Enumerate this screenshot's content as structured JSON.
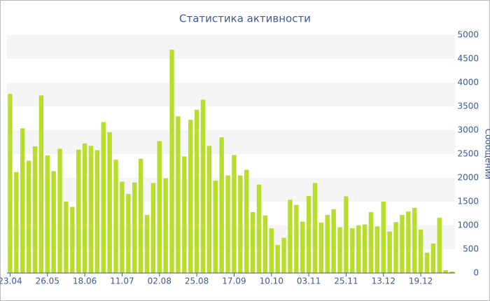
{
  "chart_data": {
    "type": "bar",
    "title": "Статистика активности",
    "y_label": "Сообщений",
    "categories": [
      "23.04",
      null,
      null,
      null,
      null,
      null,
      "26.05",
      null,
      null,
      null,
      null,
      null,
      "18.06",
      null,
      null,
      null,
      null,
      null,
      "11.07",
      null,
      null,
      null,
      null,
      null,
      "02.08",
      null,
      null,
      null,
      null,
      null,
      "25.08",
      null,
      null,
      null,
      null,
      null,
      "17.09",
      null,
      null,
      null,
      null,
      null,
      "10.10",
      null,
      null,
      null,
      null,
      null,
      "03.11",
      null,
      null,
      null,
      null,
      null,
      "25.11",
      null,
      null,
      null,
      null,
      null,
      "13.12",
      null,
      null,
      null,
      null,
      null,
      "19.12",
      null,
      null,
      null,
      null,
      null
    ],
    "values": [
      3760,
      2120,
      3040,
      2360,
      2660,
      3730,
      2470,
      2140,
      2610,
      1500,
      1390,
      2590,
      2720,
      2670,
      2580,
      3170,
      2960,
      2380,
      1920,
      1660,
      1900,
      2400,
      1220,
      1890,
      2770,
      1990,
      4690,
      3290,
      2450,
      3220,
      3430,
      3640,
      2670,
      1940,
      2850,
      2050,
      2480,
      2050,
      2170,
      1280,
      1860,
      1210,
      940,
      590,
      740,
      1540,
      1430,
      1080,
      1620,
      1890,
      1060,
      1220,
      1340,
      960,
      1610,
      940,
      1000,
      1020,
      1280,
      980,
      1500,
      870,
      1070,
      1220,
      1290,
      1370,
      910,
      430,
      620,
      1160,
      60,
      30
    ],
    "color": "#b8de2c",
    "ylim": [
      0,
      5000
    ],
    "yticks": [
      0,
      500,
      1000,
      1500,
      2000,
      2500,
      3000,
      3500,
      4000,
      4500,
      5000
    ],
    "grid_bands": true
  }
}
